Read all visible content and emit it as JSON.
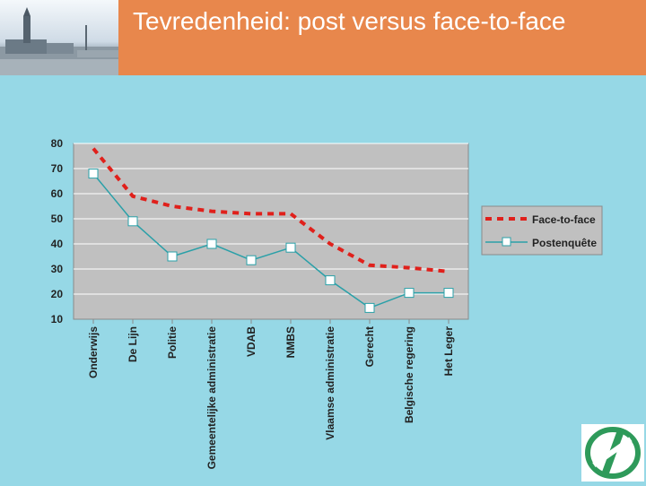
{
  "header": {
    "title": "Tevredenheid: post versus face-to-face"
  },
  "chart_data": {
    "type": "line",
    "categories": [
      "Onderwijs",
      "De Lijn",
      "Politie",
      "Gemeentelijke administratie",
      "VDAB",
      "NMBS",
      "Vlaamse administratie",
      "Gerecht",
      "Belgische regering",
      "Het Leger"
    ],
    "series": [
      {
        "name": "Face-to-face",
        "values": [
          78,
          59,
          55,
          53,
          52,
          52,
          40,
          31.5,
          30.5,
          29
        ],
        "color": "#e0201b",
        "style": "dashed"
      },
      {
        "name": "Postenquête",
        "values": [
          68,
          49,
          35,
          40,
          33.5,
          38.5,
          25.5,
          14.5,
          20.5,
          20.5
        ],
        "color": "#2aa0a8",
        "style": "solid-square-markers"
      }
    ],
    "yticks": [
      10,
      20,
      30,
      40,
      50,
      60,
      70,
      80
    ],
    "ylim": [
      10,
      80
    ],
    "grid": true,
    "legend": "right",
    "title": "",
    "xlabel": "",
    "ylabel": ""
  },
  "colors": {
    "header_bg": "#e8874c",
    "slide_bg": "#96d8e6",
    "plot_bg": "#c0c0c0",
    "logo_green": "#2e9a5a"
  }
}
